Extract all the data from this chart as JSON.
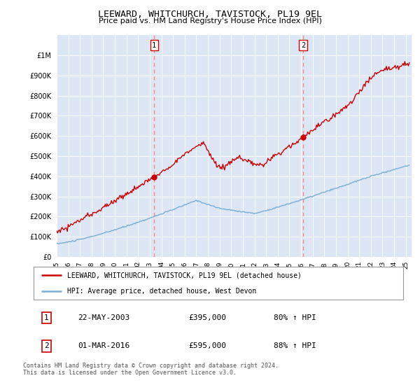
{
  "title": "LEEWARD, WHITCHURCH, TAVISTOCK, PL19 9EL",
  "subtitle": "Price paid vs. HM Land Registry's House Price Index (HPI)",
  "legend_line1": "LEEWARD, WHITCHURCH, TAVISTOCK, PL19 9EL (detached house)",
  "legend_line2": "HPI: Average price, detached house, West Devon",
  "annotation1_date": "22-MAY-2003",
  "annotation1_price": "£395,000",
  "annotation1_hpi": "80% ↑ HPI",
  "annotation1_year": 2003.38,
  "annotation1_value": 395000,
  "annotation2_date": "01-MAR-2016",
  "annotation2_price": "£595,000",
  "annotation2_hpi": "88% ↑ HPI",
  "annotation2_year": 2016.17,
  "annotation2_value": 595000,
  "ylim": [
    0,
    1100000
  ],
  "xlim_start": 1995,
  "xlim_end": 2025.5,
  "plot_bg_color": "#dce6f5",
  "grid_color": "#ffffff",
  "red_line_color": "#cc0000",
  "blue_line_color": "#7aaed6",
  "vline_color": "#ff8888",
  "footer": "Contains HM Land Registry data © Crown copyright and database right 2024.\nThis data is licensed under the Open Government Licence v3.0."
}
